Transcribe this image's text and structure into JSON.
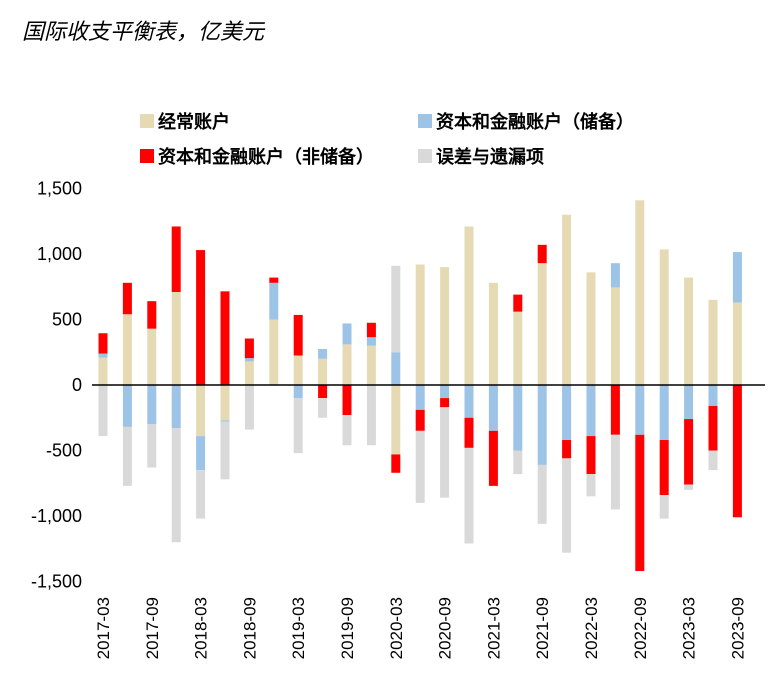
{
  "chart_data": {
    "type": "bar",
    "title": "国际收支平衡表，亿美元",
    "xlabel": "",
    "ylabel": "",
    "ylim": [
      -1500,
      1500
    ],
    "yticks": [
      1500,
      1000,
      500,
      0,
      -500,
      -1000,
      -1500
    ],
    "ytick_labels": [
      "1,500",
      "1,000",
      "500",
      "0",
      "-500",
      "-1,000",
      "-1,500"
    ],
    "xtick_labels": [
      "2017-03",
      "2017-09",
      "2018-03",
      "2018-09",
      "2019-03",
      "2019-09",
      "2020-03",
      "2020-09",
      "2021-03",
      "2021-09",
      "2022-03",
      "2022-09",
      "2023-03",
      "2023-09"
    ],
    "categories": [
      "2017-03",
      "2017-06",
      "2017-09",
      "2017-12",
      "2018-03",
      "2018-06",
      "2018-09",
      "2018-12",
      "2019-03",
      "2019-06",
      "2019-09",
      "2019-12",
      "2020-03",
      "2020-06",
      "2020-09",
      "2020-12",
      "2021-03",
      "2021-06",
      "2021-09",
      "2021-12",
      "2022-03",
      "2022-06",
      "2022-09",
      "2022-12",
      "2023-03",
      "2023-06",
      "2023-09"
    ],
    "series": [
      {
        "name": "经常账户",
        "color": "#E6DAB5",
        "values": [
          210,
          540,
          430,
          710,
          -390,
          -270,
          180,
          500,
          225,
          200,
          310,
          300,
          -530,
          920,
          900,
          1210,
          780,
          560,
          930,
          1300,
          860,
          745,
          1410,
          1035,
          820,
          650,
          630
        ]
      },
      {
        "name": "资本和金融账户（储备）",
        "color": "#9DC3E6",
        "values": [
          30,
          -320,
          -300,
          -330,
          -260,
          -10,
          25,
          280,
          -100,
          75,
          160,
          65,
          250,
          -190,
          -100,
          -250,
          -350,
          -500,
          -610,
          -420,
          -390,
          185,
          -380,
          -420,
          -260,
          -160,
          385
        ]
      },
      {
        "name": "资本和金融账户（非储备）",
        "color": "#FF0000",
        "values": [
          155,
          240,
          210,
          500,
          1030,
          715,
          150,
          40,
          310,
          -100,
          -230,
          110,
          -140,
          -160,
          -70,
          -230,
          -420,
          130,
          140,
          -140,
          -290,
          -380,
          -1040,
          -420,
          -500,
          -340,
          -1010
        ]
      },
      {
        "name": "误差与遗漏项",
        "color": "#D9D9D9",
        "values": [
          -390,
          -450,
          -330,
          -870,
          -370,
          -440,
          -340,
          0,
          -420,
          -150,
          -230,
          -460,
          660,
          -550,
          -690,
          -730,
          0,
          -180,
          -450,
          -720,
          -170,
          -570,
          0,
          -180,
          -40,
          -150,
          0
        ]
      }
    ]
  }
}
